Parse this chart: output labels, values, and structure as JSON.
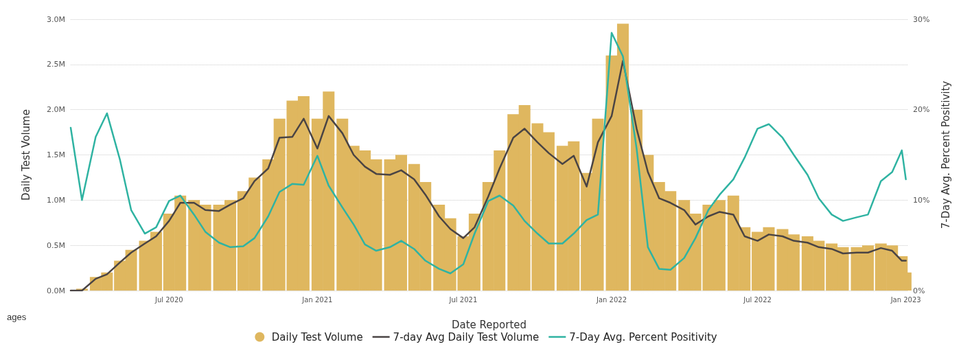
{
  "chart_data": {
    "type": "bar",
    "xlabel": "Date Reported",
    "ylabel": "Daily Test Volume",
    "y2label": "7-Day Avg. Percent Positivity",
    "annotations": [
      "ages"
    ],
    "x": [
      "2020-03-01",
      "2020-03-15",
      "2020-04-01",
      "2020-04-15",
      "2020-05-01",
      "2020-05-15",
      "2020-06-01",
      "2020-06-15",
      "2020-07-01",
      "2020-07-15",
      "2020-08-01",
      "2020-08-15",
      "2020-09-01",
      "2020-09-15",
      "2020-10-01",
      "2020-10-15",
      "2020-11-01",
      "2020-11-15",
      "2020-12-01",
      "2020-12-15",
      "2021-01-01",
      "2021-01-15",
      "2021-02-01",
      "2021-02-15",
      "2021-03-01",
      "2021-03-15",
      "2021-04-01",
      "2021-04-15",
      "2021-05-01",
      "2021-05-15",
      "2021-06-01",
      "2021-06-15",
      "2021-07-01",
      "2021-07-15",
      "2021-08-01",
      "2021-08-15",
      "2021-09-01",
      "2021-09-15",
      "2021-10-01",
      "2021-10-15",
      "2021-11-01",
      "2021-11-15",
      "2021-12-01",
      "2021-12-15",
      "2022-01-01",
      "2022-01-15",
      "2022-02-01",
      "2022-02-15",
      "2022-03-01",
      "2022-03-15",
      "2022-04-01",
      "2022-04-15",
      "2022-05-01",
      "2022-05-15",
      "2022-06-01",
      "2022-06-15",
      "2022-07-01",
      "2022-07-15",
      "2022-08-01",
      "2022-08-15",
      "2022-09-01",
      "2022-09-15",
      "2022-10-01",
      "2022-10-15",
      "2022-11-01",
      "2022-11-15",
      "2022-12-01",
      "2022-12-15",
      "2022-12-27",
      "2023-01-01"
    ],
    "series": [
      {
        "name": "Daily Test Volume",
        "color": "#dfb75f",
        "values": [
          0,
          0.02,
          0.15,
          0.2,
          0.33,
          0.45,
          0.55,
          0.65,
          0.85,
          1.05,
          1.0,
          0.95,
          0.95,
          1.0,
          1.1,
          1.25,
          1.45,
          1.9,
          2.1,
          2.15,
          1.9,
          2.2,
          1.9,
          1.6,
          1.55,
          1.45,
          1.45,
          1.5,
          1.4,
          1.2,
          0.95,
          0.8,
          0.6,
          0.85,
          1.2,
          1.55,
          1.95,
          2.05,
          1.85,
          1.75,
          1.6,
          1.65,
          1.3,
          1.9,
          2.6,
          2.95,
          2.0,
          1.5,
          1.2,
          1.1,
          1.0,
          0.85,
          0.95,
          1.0,
          1.05,
          0.7,
          0.65,
          0.7,
          0.68,
          0.62,
          0.6,
          0.55,
          0.52,
          0.48,
          0.48,
          0.5,
          0.52,
          0.5,
          0.38,
          0.2
        ]
      },
      {
        "name": "7-day Avg Daily Test Volume",
        "type": "line",
        "color": "#4a4444",
        "values": [
          0,
          0,
          0.13,
          0.18,
          0.31,
          0.42,
          0.52,
          0.6,
          0.77,
          0.97,
          0.97,
          0.89,
          0.88,
          0.95,
          1.02,
          1.21,
          1.35,
          1.69,
          1.7,
          1.9,
          1.57,
          1.93,
          1.74,
          1.5,
          1.37,
          1.29,
          1.28,
          1.33,
          1.23,
          1.06,
          0.82,
          0.68,
          0.58,
          0.7,
          1.04,
          1.35,
          1.69,
          1.79,
          1.64,
          1.52,
          1.4,
          1.49,
          1.15,
          1.64,
          1.93,
          2.54,
          1.79,
          1.31,
          1.02,
          0.97,
          0.89,
          0.73,
          0.82,
          0.87,
          0.84,
          0.6,
          0.55,
          0.62,
          0.6,
          0.55,
          0.53,
          0.48,
          0.46,
          0.41,
          0.42,
          0.42,
          0.47,
          0.44,
          0.33,
          0.33
        ]
      },
      {
        "name": "7-Day Avg. Percent Positivity",
        "type": "line",
        "axis": "y2",
        "color": "#2fb3a2",
        "values": [
          18,
          10,
          17,
          19.6,
          14.5,
          8.9,
          6.3,
          7,
          9.9,
          10.5,
          8.4,
          6.5,
          5.3,
          4.8,
          4.9,
          5.8,
          8.2,
          10.9,
          11.8,
          11.7,
          14.9,
          11.6,
          9.2,
          7.3,
          5.1,
          4.4,
          4.8,
          5.5,
          4.6,
          3.3,
          2.4,
          1.9,
          2.9,
          6.3,
          9.9,
          10.5,
          9.4,
          7.7,
          6.3,
          5.2,
          5.2,
          6.3,
          7.8,
          8.4,
          28.5,
          25.9,
          15.7,
          4.8,
          2.4,
          2.3,
          3.6,
          5.8,
          8.9,
          10.6,
          12.3,
          14.7,
          17.9,
          18.4,
          16.9,
          15,
          12.8,
          10.2,
          8.4,
          7.7,
          8.1,
          8.4,
          12.1,
          13.1,
          15.5,
          12.3
        ]
      }
    ],
    "xlim": [
      "2020-03-01",
      "2023-01-03"
    ],
    "xticks": [
      {
        "value": "2020-07-01",
        "label": "Jul 2020"
      },
      {
        "value": "2021-01-01",
        "label": "Jan 2021"
      },
      {
        "value": "2021-07-01",
        "label": "Jul 2021"
      },
      {
        "value": "2022-01-01",
        "label": "Jan 2022"
      },
      {
        "value": "2022-07-01",
        "label": "Jul 2022"
      },
      {
        "value": "2023-01-01",
        "label": "Jan 2023"
      }
    ],
    "ylim": [
      0,
      3
    ],
    "yticks": [
      {
        "value": 0,
        "label": "0.0M"
      },
      {
        "value": 0.5,
        "label": "0.5M"
      },
      {
        "value": 1,
        "label": "1.0M"
      },
      {
        "value": 1.5,
        "label": "1.5M"
      },
      {
        "value": 2,
        "label": "2.0M"
      },
      {
        "value": 2.5,
        "label": "2.5M"
      },
      {
        "value": 3,
        "label": "3.0M"
      }
    ],
    "y2lim": [
      0,
      30
    ],
    "y2ticks": [
      {
        "value": 0,
        "label": "0%"
      },
      {
        "value": 10,
        "label": "10%"
      },
      {
        "value": 20,
        "label": "20%"
      },
      {
        "value": 30,
        "label": "30%"
      }
    ],
    "grid": "y",
    "legend": "bottom"
  }
}
